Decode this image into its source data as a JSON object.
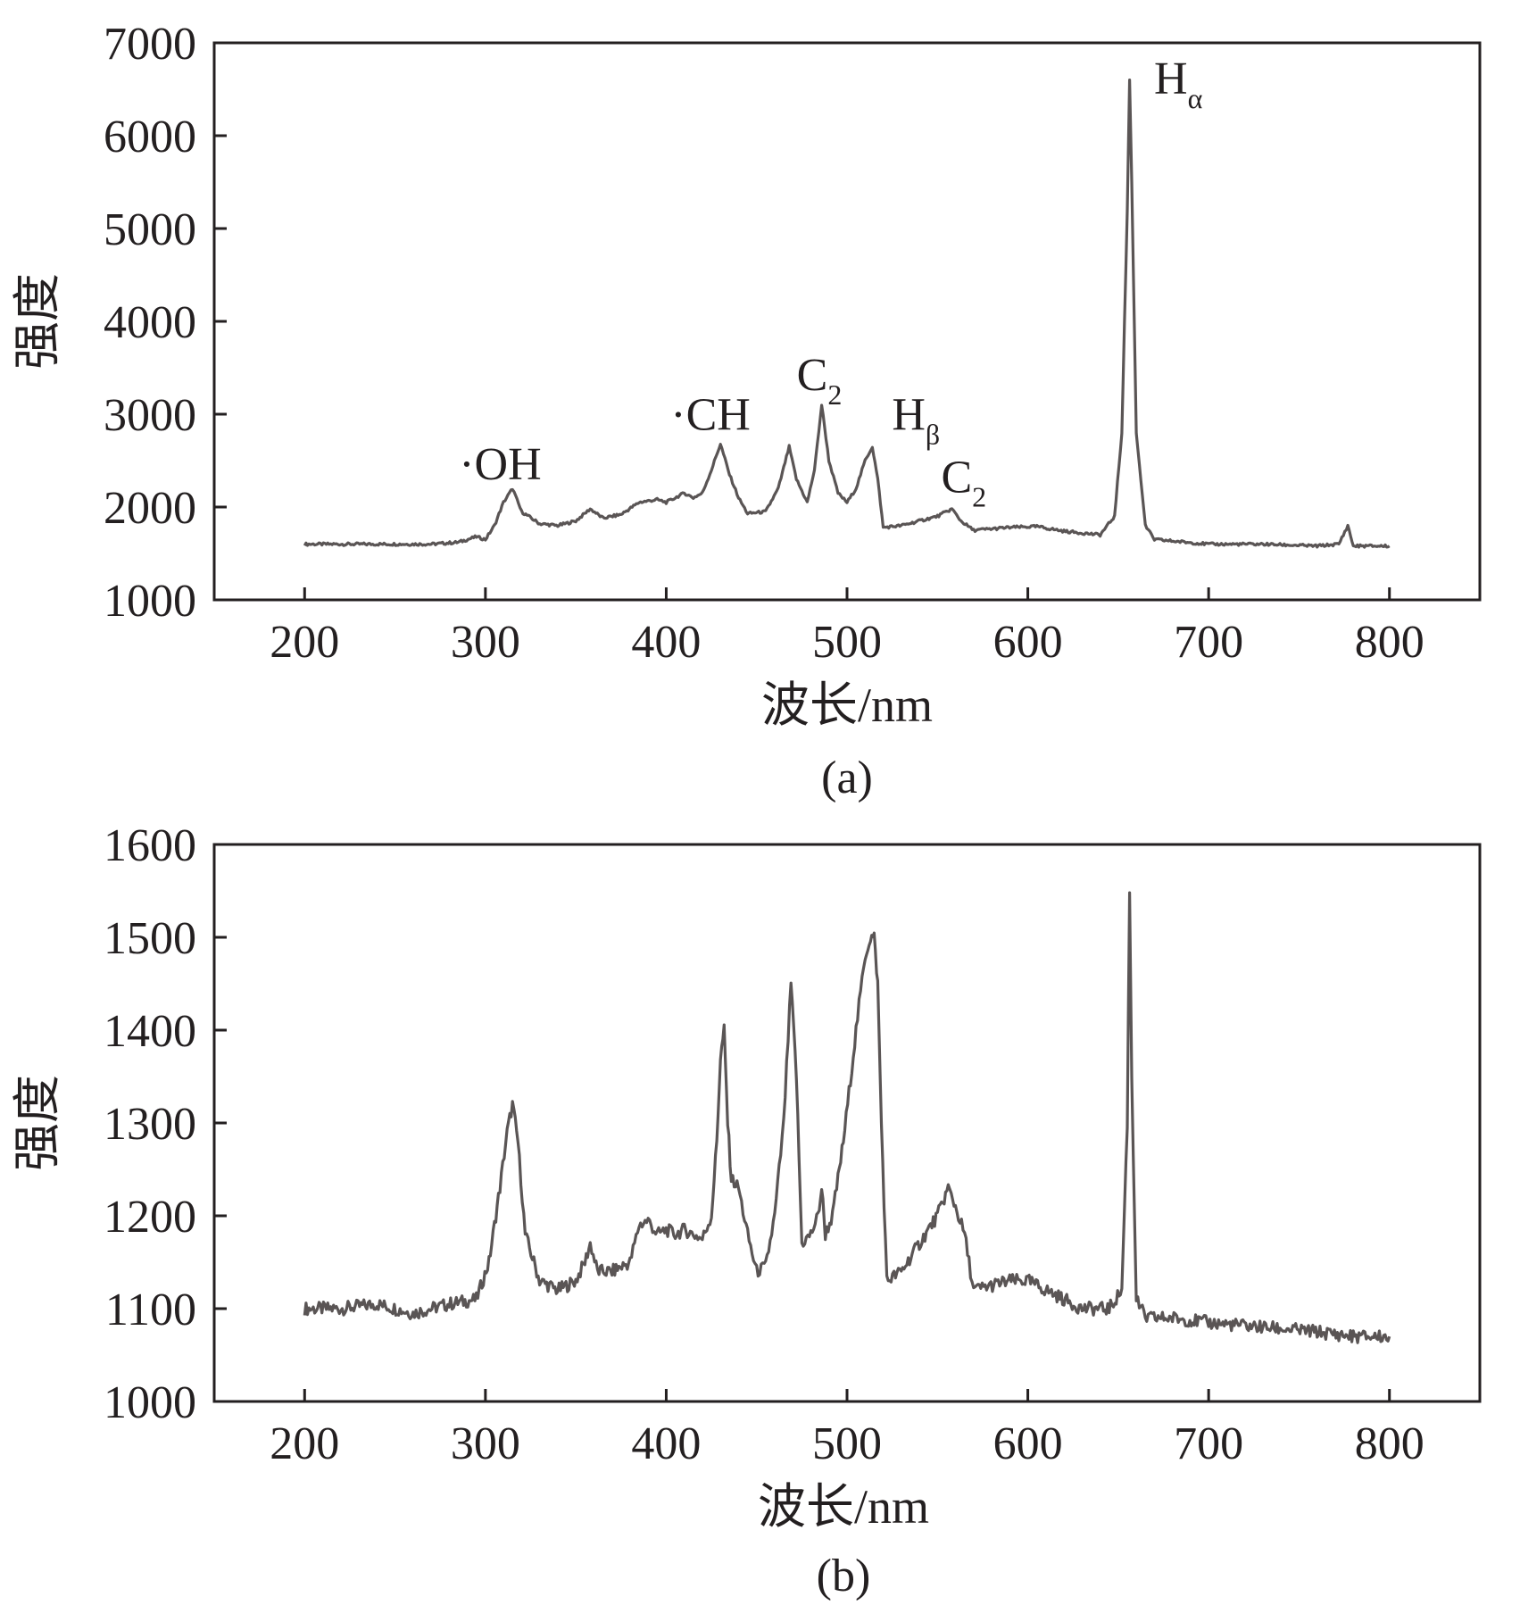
{
  "chart_data": [
    {
      "type": "line",
      "panel_label": "(a)",
      "xlabel": "波长/nm",
      "ylabel": "强度",
      "xlim": [
        150,
        850
      ],
      "ylim": [
        1000,
        7000
      ],
      "xticks": [
        200,
        300,
        400,
        500,
        600,
        700,
        800
      ],
      "yticks": [
        1000,
        2000,
        3000,
        4000,
        5000,
        6000,
        7000
      ],
      "grid": false,
      "line_color": "#5a5555",
      "series": [
        {
          "x": [
            200,
            240,
            270,
            285,
            295,
            300,
            305,
            310,
            315,
            320,
            330,
            340,
            350,
            358,
            365,
            375,
            385,
            395,
            400,
            405,
            410,
            415,
            420,
            425,
            430,
            435,
            440,
            445,
            455,
            462,
            468,
            472,
            478,
            482,
            486,
            490,
            495,
            500,
            505,
            510,
            514,
            517,
            520,
            530,
            540,
            550,
            558,
            563,
            570,
            590,
            605,
            620,
            640,
            648,
            652,
            655,
            656.3,
            657.5,
            660,
            665,
            670,
            700,
            730,
            760,
            772,
            777,
            780,
            790,
            800
          ],
          "values": [
            1600,
            1600,
            1600,
            1620,
            1680,
            1650,
            1800,
            2050,
            2200,
            1950,
            1820,
            1800,
            1850,
            1980,
            1880,
            1920,
            2050,
            2080,
            2050,
            2100,
            2150,
            2100,
            2150,
            2400,
            2680,
            2350,
            2100,
            1930,
            1950,
            2200,
            2650,
            2300,
            2050,
            2400,
            3100,
            2500,
            2150,
            2050,
            2200,
            2500,
            2650,
            2300,
            1780,
            1800,
            1850,
            1900,
            1980,
            1850,
            1750,
            1780,
            1790,
            1740,
            1700,
            1900,
            2800,
            5200,
            6600,
            5500,
            2800,
            1800,
            1650,
            1600,
            1600,
            1580,
            1600,
            1800,
            1580,
            1580,
            1580
          ]
        }
      ],
      "annotations": [
        {
          "text": "·OH",
          "x": 315,
          "y": 2300
        },
        {
          "text": "·CH",
          "x": 432,
          "y": 2830
        },
        {
          "text": "C",
          "sub": "2",
          "x": 486,
          "y": 3260
        },
        {
          "text": "H",
          "sub": "β",
          "x": 514,
          "y": 2830
        },
        {
          "text": "C",
          "sub": "2",
          "x": 558,
          "y": 2160
        },
        {
          "text": "H",
          "sub": "α",
          "x": 656,
          "y": 6450
        }
      ]
    },
    {
      "type": "line",
      "panel_label": "(b)",
      "xlabel": "波长/nm",
      "ylabel": "强度",
      "xlim": [
        150,
        850
      ],
      "ylim": [
        1000,
        1600
      ],
      "xticks": [
        200,
        300,
        400,
        500,
        600,
        700,
        800
      ],
      "yticks": [
        1000,
        1100,
        1200,
        1300,
        1400,
        1500,
        1600
      ],
      "grid": false,
      "line_color": "#5a5555",
      "series": [
        {
          "x": [
            200,
            220,
            240,
            260,
            280,
            295,
            302,
            308,
            312,
            315,
            318,
            322,
            330,
            340,
            350,
            355,
            358,
            362,
            370,
            380,
            385,
            390,
            395,
            400,
            405,
            410,
            415,
            420,
            425,
            428,
            430,
            432,
            434,
            436,
            440,
            445,
            450,
            455,
            460,
            465,
            469,
            472,
            475,
            480,
            484,
            486,
            488,
            492,
            498,
            505,
            510,
            513,
            515,
            517,
            519,
            522,
            530,
            540,
            550,
            556,
            560,
            565,
            570,
            590,
            600,
            610,
            620,
            630,
            645,
            652,
            655,
            656.3,
            657.5,
            660,
            665,
            680,
            700,
            730,
            760,
            780,
            800
          ],
          "values": [
            1100,
            1100,
            1105,
            1095,
            1105,
            1110,
            1150,
            1230,
            1290,
            1320,
            1280,
            1180,
            1130,
            1120,
            1130,
            1150,
            1170,
            1140,
            1140,
            1150,
            1190,
            1195,
            1180,
            1185,
            1180,
            1185,
            1180,
            1175,
            1200,
            1280,
            1370,
            1400,
            1300,
            1240,
            1230,
            1180,
            1140,
            1145,
            1200,
            1300,
            1450,
            1350,
            1170,
            1180,
            1200,
            1230,
            1180,
            1200,
            1280,
            1400,
            1480,
            1500,
            1500,
            1450,
            1300,
            1130,
            1140,
            1170,
            1200,
            1230,
            1210,
            1180,
            1120,
            1130,
            1130,
            1120,
            1110,
            1100,
            1100,
            1120,
            1300,
            1550,
            1350,
            1110,
            1090,
            1090,
            1085,
            1080,
            1075,
            1070,
            1070
          ]
        }
      ]
    }
  ]
}
